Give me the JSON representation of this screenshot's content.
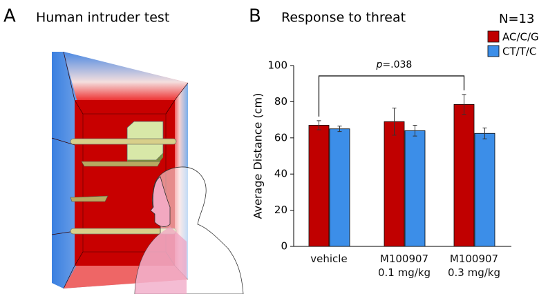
{
  "panel_a": {
    "letter": "A",
    "title": "Human intruder test"
  },
  "chart_data": {
    "type": "bar",
    "letter": "B",
    "title": "Response to threat",
    "legend_title": "N=13",
    "ylabel": "Average Distance (cm)",
    "categories": [
      "vehicle",
      "M100907\n0.1 mg/kg",
      "M100907\n0.3 mg/kg"
    ],
    "series": [
      {
        "name": "AC/C/G",
        "color": "#c00000",
        "values": [
          67,
          69,
          78.5
        ],
        "errors": [
          2.5,
          7.5,
          5.5
        ]
      },
      {
        "name": "CT/T/C",
        "color": "#3c8ee8",
        "values": [
          65,
          64,
          62.5
        ],
        "errors": [
          1.5,
          3,
          3
        ]
      }
    ],
    "ylim": [
      0,
      100
    ],
    "yticks": [
      0,
      20,
      40,
      60,
      80,
      100
    ],
    "annotation": "p=.038",
    "legend": "upper right"
  }
}
